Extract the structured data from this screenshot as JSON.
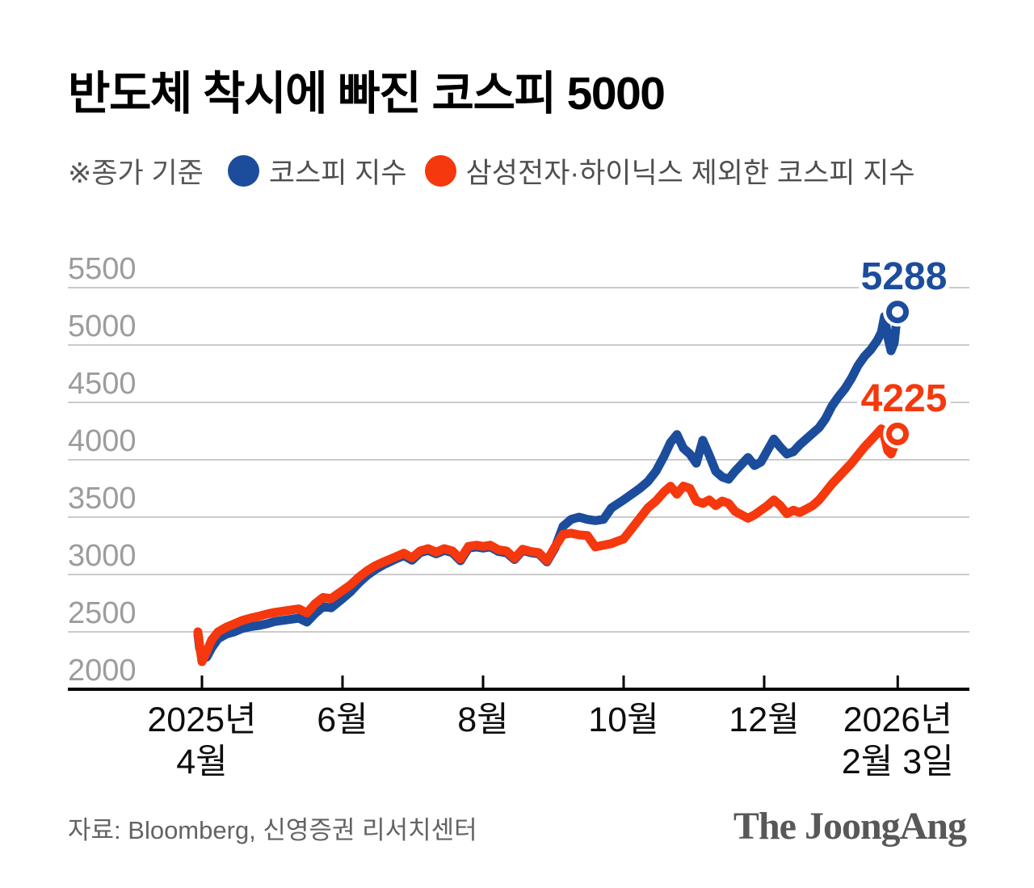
{
  "header": {
    "title": "반도체 착시에 빠진 코스피 5000",
    "note": "※종가 기준"
  },
  "footer": {
    "source": "자료: Bloomberg, 신영증권 리서치센터",
    "logo": "The JoongAng"
  },
  "chart_data": {
    "type": "line",
    "title": "반도체 착시에 빠진 코스피 5000",
    "note": "※종가 기준",
    "x_unit": "months since 2025-04-01",
    "xlim": [
      -0.2,
      10.9
    ],
    "ylim": [
      2000,
      5900
    ],
    "grid": true,
    "legend_position": "top",
    "yticks": [
      2000,
      2500,
      3000,
      3500,
      4000,
      4500,
      5000,
      5500
    ],
    "xticks": [
      {
        "t": 0,
        "label": [
          "2025년",
          "4월"
        ]
      },
      {
        "t": 2,
        "label": [
          "6월"
        ]
      },
      {
        "t": 4,
        "label": [
          "8월"
        ]
      },
      {
        "t": 6,
        "label": [
          "10월"
        ]
      },
      {
        "t": 8,
        "label": [
          "12월"
        ]
      },
      {
        "t": 9.9,
        "label": [
          "2026년",
          "2월 3일"
        ]
      }
    ],
    "x": [
      -0.057,
      -0.034,
      0,
      0.069,
      0.138,
      0.23,
      0.345,
      0.46,
      0.575,
      0.69,
      0.805,
      0.92,
      1.034,
      1.149,
      1.264,
      1.379,
      1.494,
      1.609,
      1.724,
      1.839,
      2,
      2.115,
      2.23,
      2.345,
      2.46,
      2.586,
      2.759,
      2.874,
      2.989,
      3.103,
      3.218,
      3.333,
      3.448,
      3.563,
      3.678,
      3.793,
      3.908,
      4,
      4.103,
      4.218,
      4.333,
      4.448,
      4.563,
      4.678,
      4.793,
      4.908,
      5.023,
      5.138,
      5.253,
      5.368,
      5.483,
      5.598,
      5.713,
      5.828,
      6,
      6.115,
      6.23,
      6.345,
      6.46,
      6.575,
      6.667,
      6.759,
      6.851,
      6.943,
      7.034,
      7.126,
      7.218,
      7.31,
      7.402,
      7.494,
      7.586,
      7.678,
      7.77,
      7.862,
      7.954,
      8.046,
      8.138,
      8.23,
      8.322,
      8.414,
      8.506,
      8.598,
      8.69,
      8.782,
      8.874,
      8.966,
      9.057,
      9.149,
      9.241,
      9.333,
      9.425,
      9.517,
      9.609,
      9.667,
      9.713,
      9.759,
      9.805,
      9.851,
      9.897
    ],
    "series": [
      {
        "name": "코스피 지수",
        "color": "#1c4d9c",
        "end_label": "5288",
        "end_value": 5288,
        "values": [
          2480,
          2360,
          2290,
          2280,
          2360,
          2440,
          2480,
          2500,
          2530,
          2545,
          2555,
          2570,
          2590,
          2600,
          2610,
          2620,
          2585,
          2660,
          2720,
          2710,
          2790,
          2850,
          2925,
          2990,
          3040,
          3085,
          3135,
          3165,
          3125,
          3190,
          3210,
          3180,
          3210,
          3190,
          3120,
          3230,
          3240,
          3230,
          3240,
          3200,
          3190,
          3130,
          3210,
          3190,
          3180,
          3110,
          3230,
          3420,
          3480,
          3500,
          3480,
          3470,
          3480,
          3580,
          3650,
          3700,
          3750,
          3810,
          3900,
          4030,
          4150,
          4220,
          4100,
          4050,
          3970,
          4170,
          4040,
          3900,
          3850,
          3830,
          3900,
          3960,
          4020,
          3950,
          3980,
          4080,
          4180,
          4110,
          4050,
          4070,
          4130,
          4180,
          4230,
          4280,
          4360,
          4470,
          4550,
          4620,
          4710,
          4820,
          4900,
          4960,
          5040,
          5110,
          5250,
          5070,
          4950,
          5020,
          5288
        ]
      },
      {
        "name": "삼성전자·하이닉스 제외한 코스피 지수",
        "color": "#f5380d",
        "end_label": "4225",
        "end_value": 4225,
        "values": [
          2500,
          2390,
          2240,
          2330,
          2430,
          2500,
          2540,
          2570,
          2600,
          2620,
          2635,
          2655,
          2670,
          2680,
          2690,
          2700,
          2665,
          2745,
          2800,
          2790,
          2860,
          2910,
          2975,
          3030,
          3075,
          3110,
          3155,
          3185,
          3145,
          3205,
          3225,
          3195,
          3225,
          3205,
          3135,
          3245,
          3255,
          3245,
          3255,
          3215,
          3205,
          3140,
          3220,
          3200,
          3190,
          3120,
          3240,
          3350,
          3360,
          3345,
          3340,
          3240,
          3255,
          3270,
          3310,
          3400,
          3490,
          3580,
          3640,
          3720,
          3770,
          3700,
          3770,
          3750,
          3640,
          3620,
          3650,
          3600,
          3640,
          3620,
          3550,
          3520,
          3490,
          3520,
          3560,
          3600,
          3650,
          3600,
          3530,
          3560,
          3540,
          3570,
          3600,
          3650,
          3720,
          3790,
          3850,
          3910,
          3970,
          4040,
          4110,
          4170,
          4230,
          4270,
          4200,
          4080,
          4050,
          4120,
          4225
        ]
      }
    ]
  }
}
